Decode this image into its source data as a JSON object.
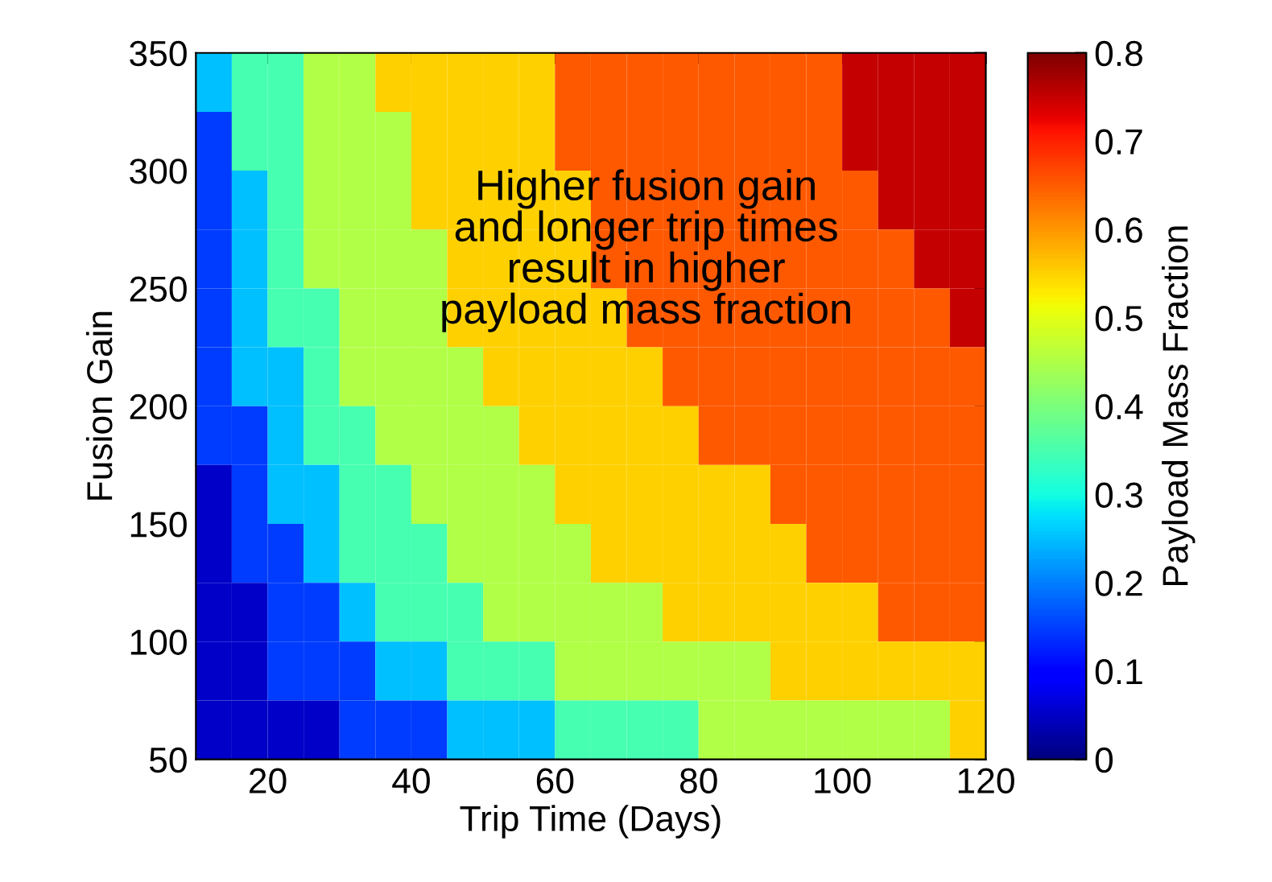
{
  "chart_data": {
    "type": "heatmap",
    "xlabel": "Trip Time (Days)",
    "ylabel": "Fusion Gain",
    "clabel": "Payload Mass Fraction",
    "annotations": [
      "Higher fusion gain\nand longer trip times\nresult in higher\npayload mass fraction"
    ],
    "xlim": [
      10,
      120
    ],
    "xticks": [
      20,
      40,
      60,
      80,
      100,
      120
    ],
    "ylim": [
      50,
      350
    ],
    "yticks": [
      50,
      100,
      150,
      200,
      250,
      300,
      350
    ],
    "clim": [
      0,
      0.8
    ],
    "cticks": [
      0,
      0.1,
      0.2,
      0.3,
      0.4,
      0.5,
      0.6,
      0.7,
      0.8
    ],
    "cells": [
      [
        0.25,
        0.35,
        0.35,
        0.45,
        0.45,
        0.55,
        0.55,
        0.55,
        0.55,
        0.55,
        0.65,
        0.65,
        0.65,
        0.65,
        0.65,
        0.65,
        0.65,
        0.65,
        0.75,
        0.75,
        0.75,
        0.75
      ],
      [
        0.15,
        0.35,
        0.35,
        0.45,
        0.45,
        0.45,
        0.55,
        0.55,
        0.55,
        0.55,
        0.65,
        0.65,
        0.65,
        0.65,
        0.65,
        0.65,
        0.65,
        0.65,
        0.75,
        0.75,
        0.75,
        0.75
      ],
      [
        0.15,
        0.25,
        0.35,
        0.45,
        0.45,
        0.45,
        0.55,
        0.55,
        0.55,
        0.55,
        0.55,
        0.65,
        0.65,
        0.65,
        0.65,
        0.65,
        0.65,
        0.65,
        0.65,
        0.75,
        0.75,
        0.75
      ],
      [
        0.15,
        0.25,
        0.35,
        0.45,
        0.45,
        0.45,
        0.45,
        0.55,
        0.55,
        0.55,
        0.55,
        0.65,
        0.65,
        0.65,
        0.65,
        0.65,
        0.65,
        0.65,
        0.65,
        0.65,
        0.75,
        0.75
      ],
      [
        0.15,
        0.25,
        0.35,
        0.35,
        0.45,
        0.45,
        0.45,
        0.55,
        0.55,
        0.55,
        0.55,
        0.55,
        0.65,
        0.65,
        0.65,
        0.65,
        0.65,
        0.65,
        0.65,
        0.65,
        0.65,
        0.75
      ],
      [
        0.15,
        0.25,
        0.25,
        0.35,
        0.45,
        0.45,
        0.45,
        0.45,
        0.55,
        0.55,
        0.55,
        0.55,
        0.55,
        0.65,
        0.65,
        0.65,
        0.65,
        0.65,
        0.65,
        0.65,
        0.65,
        0.65
      ],
      [
        0.15,
        0.15,
        0.25,
        0.35,
        0.35,
        0.45,
        0.45,
        0.45,
        0.45,
        0.55,
        0.55,
        0.55,
        0.55,
        0.55,
        0.65,
        0.65,
        0.65,
        0.65,
        0.65,
        0.65,
        0.65,
        0.65
      ],
      [
        0.05,
        0.15,
        0.25,
        0.25,
        0.35,
        0.35,
        0.45,
        0.45,
        0.45,
        0.45,
        0.55,
        0.55,
        0.55,
        0.55,
        0.55,
        0.55,
        0.65,
        0.65,
        0.65,
        0.65,
        0.65,
        0.65
      ],
      [
        0.05,
        0.15,
        0.15,
        0.25,
        0.35,
        0.35,
        0.35,
        0.45,
        0.45,
        0.45,
        0.45,
        0.55,
        0.55,
        0.55,
        0.55,
        0.55,
        0.55,
        0.65,
        0.65,
        0.65,
        0.65,
        0.65
      ],
      [
        0.05,
        0.05,
        0.15,
        0.15,
        0.25,
        0.35,
        0.35,
        0.35,
        0.45,
        0.45,
        0.45,
        0.45,
        0.45,
        0.55,
        0.55,
        0.55,
        0.55,
        0.55,
        0.55,
        0.65,
        0.65,
        0.65
      ],
      [
        0.05,
        0.05,
        0.15,
        0.15,
        0.15,
        0.25,
        0.25,
        0.35,
        0.35,
        0.35,
        0.45,
        0.45,
        0.45,
        0.45,
        0.45,
        0.45,
        0.55,
        0.55,
        0.55,
        0.55,
        0.55,
        0.55
      ],
      [
        0.05,
        0.05,
        0.05,
        0.05,
        0.15,
        0.15,
        0.15,
        0.25,
        0.25,
        0.25,
        0.35,
        0.35,
        0.35,
        0.35,
        0.45,
        0.45,
        0.45,
        0.45,
        0.45,
        0.45,
        0.45,
        0.55
      ]
    ]
  }
}
